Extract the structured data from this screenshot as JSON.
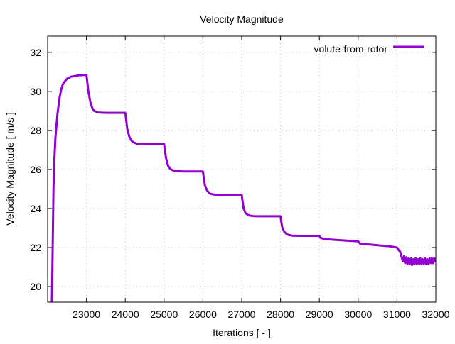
{
  "chart_data": {
    "type": "line",
    "title": "Velocity Magnitude",
    "xlabel": "Iterations [ - ]",
    "ylabel": "Velocity Magnitude [ m/s ]",
    "xlim": [
      22000,
      32000
    ],
    "ylim": [
      19.2,
      32.83
    ],
    "xticks": [
      23000,
      24000,
      25000,
      26000,
      27000,
      28000,
      29000,
      30000,
      31000,
      32000
    ],
    "yticks": [
      20,
      22,
      24,
      26,
      28,
      30,
      32
    ],
    "grid": true,
    "legend_position": "top-right",
    "series": [
      {
        "name": "volute-from-rotor",
        "color": "#9400d3",
        "x": [
          22110,
          22130,
          22150,
          22175,
          22200,
          22250,
          22300,
          22350,
          22400,
          22500,
          22600,
          22800,
          23000,
          23020,
          23050,
          23100,
          23150,
          23200,
          23300,
          23500,
          24000,
          24020,
          24050,
          24100,
          24150,
          24200,
          24300,
          24500,
          25000,
          25020,
          25050,
          25100,
          25150,
          25200,
          25300,
          25500,
          26000,
          26020,
          26050,
          26100,
          26150,
          26200,
          26300,
          26500,
          27000,
          27020,
          27050,
          27100,
          27150,
          27200,
          27300,
          27500,
          28000,
          28020,
          28050,
          28100,
          28150,
          28200,
          28300,
          28500,
          29000,
          29030,
          29100,
          29200,
          29500,
          30000,
          30050,
          30100,
          30300,
          30500,
          30700,
          30800,
          30850,
          31000,
          31050,
          31080,
          31120,
          31150,
          31180,
          31210,
          31240,
          31270,
          31300,
          31330,
          31360,
          31390,
          31420,
          31450,
          31480,
          31510,
          31540,
          31570,
          31600,
          31630,
          31660,
          31690,
          31720,
          31750,
          31780,
          31810,
          31840,
          31870,
          31900,
          31930,
          31960,
          32000
        ],
        "y": [
          19.2,
          22.0,
          25.0,
          26.6,
          27.6,
          28.8,
          29.6,
          30.1,
          30.4,
          30.65,
          30.75,
          30.82,
          30.85,
          30.5,
          30.0,
          29.45,
          29.15,
          29.0,
          28.92,
          28.9,
          28.9,
          28.6,
          28.1,
          27.7,
          27.5,
          27.4,
          27.32,
          27.3,
          27.3,
          27.0,
          26.6,
          26.2,
          26.05,
          25.97,
          25.92,
          25.9,
          25.9,
          25.6,
          25.2,
          24.95,
          24.82,
          24.75,
          24.71,
          24.7,
          24.7,
          24.4,
          24.0,
          23.75,
          23.68,
          23.64,
          23.61,
          23.6,
          23.6,
          23.3,
          23.0,
          22.8,
          22.7,
          22.65,
          22.61,
          22.6,
          22.6,
          22.5,
          22.45,
          22.42,
          22.38,
          22.32,
          22.2,
          22.18,
          22.15,
          22.12,
          22.08,
          22.07,
          22.05,
          22.0,
          21.85,
          21.8,
          21.5,
          21.3,
          21.55,
          21.2,
          21.5,
          21.15,
          21.45,
          21.15,
          21.45,
          21.1,
          21.4,
          21.15,
          21.45,
          21.15,
          21.4,
          21.15,
          21.45,
          21.15,
          21.4,
          21.15,
          21.45,
          21.15,
          21.4,
          21.15,
          21.45,
          21.2,
          21.45,
          21.2,
          21.45,
          21.25
        ]
      }
    ]
  }
}
